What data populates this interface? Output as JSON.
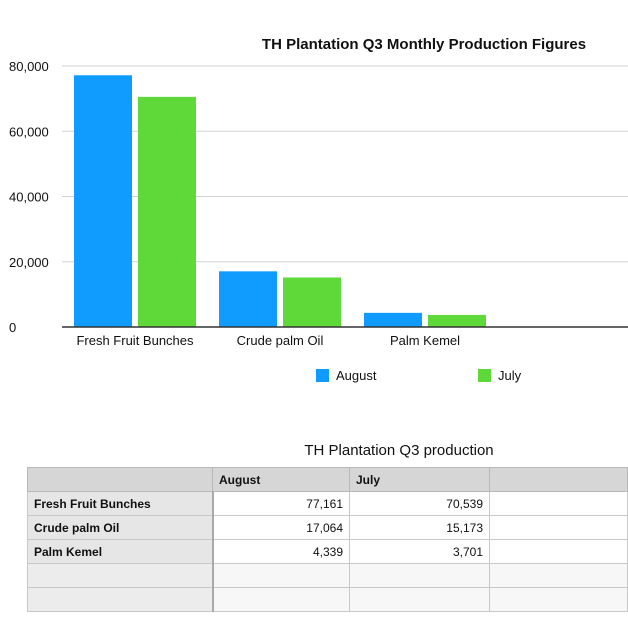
{
  "chart_data": {
    "type": "bar",
    "title": "TH Plantation Q3 Monthly Production Figures",
    "categories": [
      "Fresh Fruit Bunches",
      "Crude palm Oil",
      "Palm Kemel"
    ],
    "series": [
      {
        "name": "August",
        "values": [
          77161,
          17064,
          4339
        ],
        "color": "#0f9bff"
      },
      {
        "name": "July",
        "values": [
          70539,
          15173,
          3701
        ],
        "color": "#5fd83a"
      }
    ],
    "ylim": [
      0,
      80000
    ],
    "yticks": [
      0,
      20000,
      40000,
      60000,
      80000
    ],
    "ytick_labels": [
      "0",
      "20,000",
      "40,000",
      "60,000",
      "80,000"
    ],
    "grid": true,
    "legend": "bottom",
    "xlabel": "",
    "ylabel": ""
  },
  "table": {
    "title": "TH Plantation Q3 production",
    "headers": [
      "",
      "August",
      "July",
      ""
    ],
    "rows": [
      {
        "label": "Fresh Fruit Bunches",
        "august": "77,161",
        "july": "70,539"
      },
      {
        "label": "Crude palm Oil",
        "august": "17,064",
        "july": "15,173"
      },
      {
        "label": "Palm Kemel",
        "august": "4,339",
        "july": "3,701"
      }
    ],
    "empty_rows": 2
  }
}
